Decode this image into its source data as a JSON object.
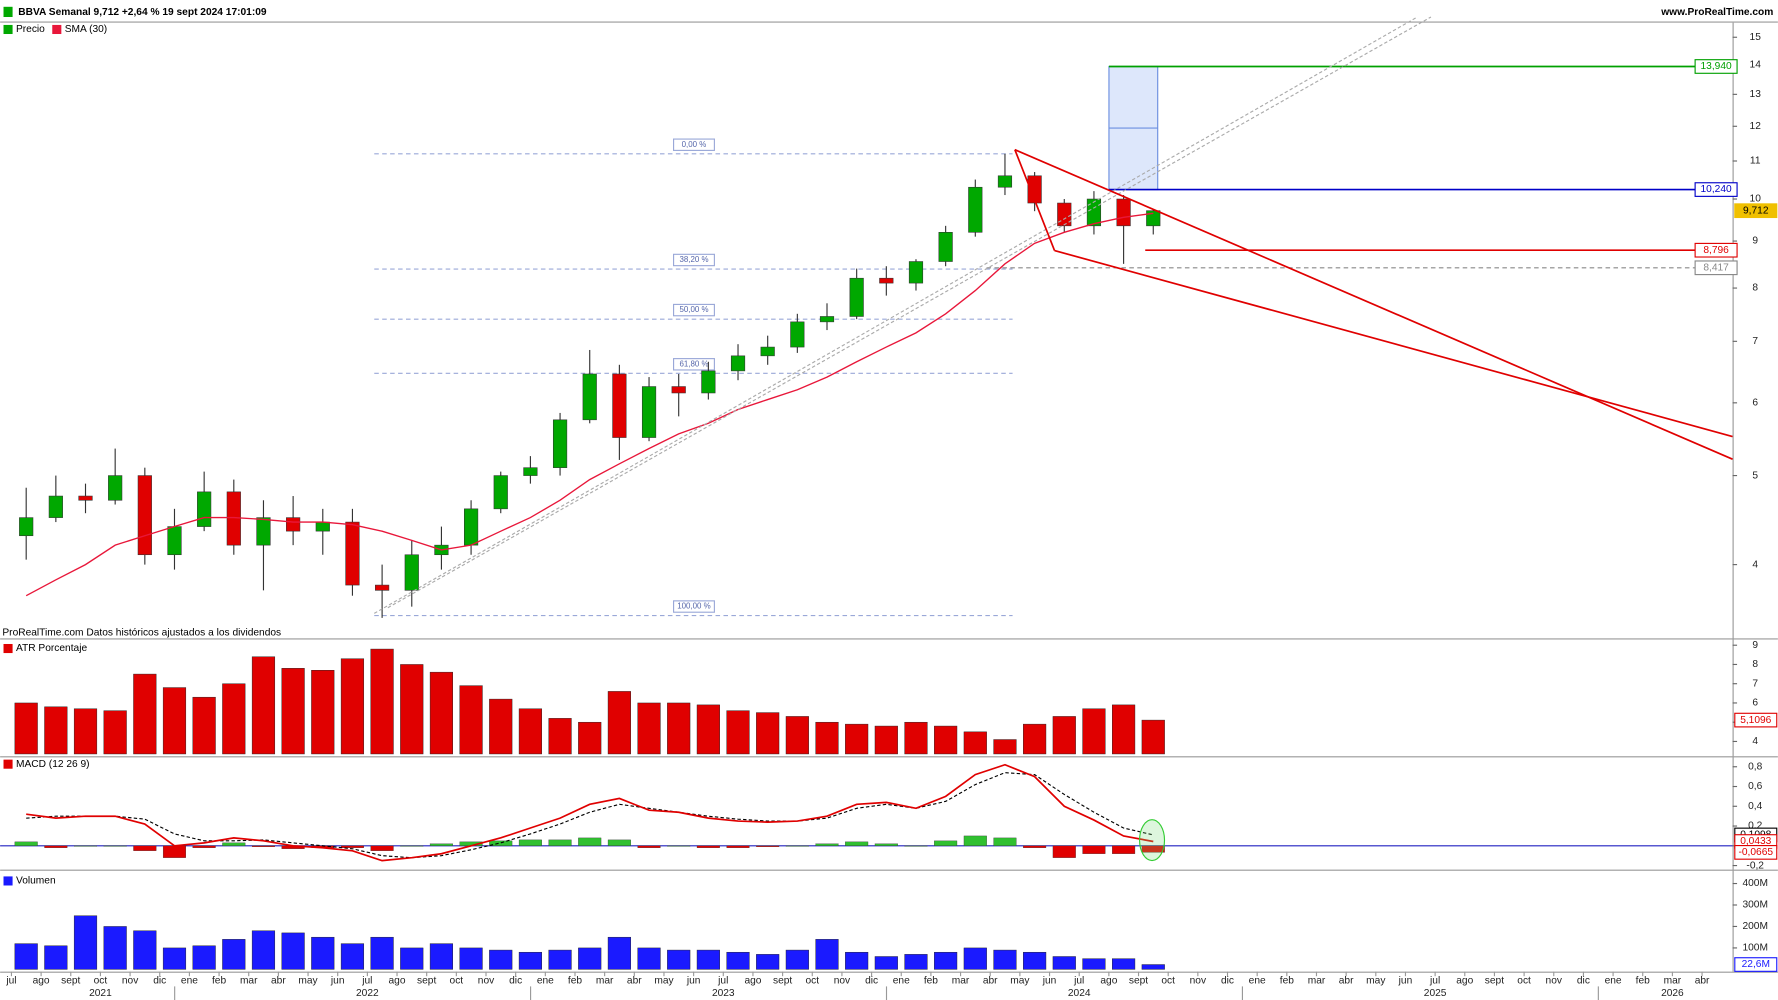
{
  "chart_data": [
    {
      "type": "candlestick",
      "title": "BBVA Semanal 9,712 +2,64 % 19 sept 2024 17:01:09",
      "source": "www.ProRealTime.com",
      "note": "ProRealTime.com Datos históricos ajustados a los dividendos",
      "categories": [
        "jul",
        "ago",
        "sept",
        "oct",
        "nov",
        "dic",
        "ene",
        "feb",
        "mar",
        "abr",
        "may",
        "jun",
        "jul",
        "ago",
        "sept",
        "oct",
        "nov",
        "dic",
        "ene",
        "feb",
        "mar",
        "abr",
        "may",
        "jun",
        "jul",
        "ago",
        "sept",
        "oct",
        "nov",
        "dic",
        "ene",
        "feb",
        "mar",
        "abr",
        "may",
        "jun",
        "jul",
        "ago",
        "sept",
        "oct",
        "nov",
        "dic",
        "ene",
        "feb",
        "mar",
        "abr",
        "may",
        "jun",
        "jul",
        "ago",
        "sept",
        "oct",
        "nov",
        "dic",
        "ene",
        "feb",
        "mar",
        "abr"
      ],
      "year_labels": [
        null,
        null,
        null,
        "2021",
        null,
        null,
        null,
        null,
        null,
        null,
        null,
        null,
        "2022",
        null,
        null,
        null,
        null,
        null,
        null,
        null,
        null,
        null,
        null,
        null,
        "2023",
        null,
        null,
        null,
        null,
        null,
        null,
        null,
        null,
        null,
        null,
        null,
        "2024",
        null,
        null,
        null,
        null,
        null,
        null,
        null,
        null,
        null,
        null,
        null,
        "2025",
        null,
        null,
        null,
        null,
        null,
        null,
        null,
        "2026",
        null
      ],
      "series": [
        {
          "name": "Precio",
          "up_color": "#00a800",
          "down_color": "#e00000",
          "open": [
            4.3,
            4.5,
            4.75,
            4.7,
            5.0,
            4.1,
            4.4,
            4.8,
            4.2,
            4.5,
            4.35,
            4.45,
            3.8,
            3.75,
            4.1,
            4.2,
            4.6,
            5.0,
            5.1,
            5.75,
            6.45,
            5.5,
            6.25,
            6.15,
            6.5,
            6.75,
            6.9,
            7.35,
            7.45,
            8.2,
            8.1,
            8.55,
            9.2,
            10.3,
            10.6,
            9.9,
            9.35,
            10.0,
            9.35,
            null,
            null,
            null,
            null,
            null,
            null,
            null,
            null,
            null,
            null,
            null,
            null,
            null,
            null,
            null,
            null,
            null,
            null,
            null
          ],
          "high": [
            4.85,
            5.0,
            4.9,
            5.35,
            5.1,
            4.6,
            5.05,
            4.95,
            4.7,
            4.75,
            4.6,
            4.6,
            4.0,
            4.25,
            4.4,
            4.7,
            5.05,
            5.25,
            5.85,
            6.85,
            6.6,
            6.4,
            6.45,
            6.65,
            6.95,
            7.1,
            7.5,
            7.7,
            8.4,
            8.45,
            8.6,
            9.35,
            10.5,
            11.2,
            10.7,
            10.0,
            10.2,
            10.1,
            9.75,
            null,
            null,
            null,
            null,
            null,
            null,
            null,
            null,
            null,
            null,
            null,
            null,
            null,
            null,
            null,
            null,
            null,
            null,
            null
          ],
          "low": [
            4.05,
            4.45,
            4.55,
            4.65,
            4.0,
            3.95,
            4.35,
            4.1,
            3.75,
            4.2,
            4.1,
            3.7,
            3.5,
            3.6,
            3.95,
            4.1,
            4.55,
            4.9,
            5.0,
            5.7,
            5.2,
            5.45,
            5.8,
            6.05,
            6.35,
            6.6,
            6.8,
            7.2,
            7.4,
            7.85,
            7.95,
            8.45,
            9.1,
            10.1,
            9.7,
            9.2,
            9.15,
            8.5,
            9.15,
            null,
            null,
            null,
            null,
            null,
            null,
            null,
            null,
            null,
            null,
            null,
            null,
            null,
            null,
            null,
            null,
            null,
            null,
            null
          ],
          "close": [
            4.5,
            4.75,
            4.7,
            5.0,
            4.1,
            4.4,
            4.8,
            4.2,
            4.5,
            4.35,
            4.45,
            3.8,
            3.75,
            4.1,
            4.2,
            4.6,
            5.0,
            5.1,
            5.75,
            6.45,
            5.5,
            6.25,
            6.15,
            6.5,
            6.75,
            6.9,
            7.35,
            7.45,
            8.2,
            8.1,
            8.55,
            9.2,
            10.3,
            10.6,
            9.9,
            9.35,
            10.0,
            9.35,
            9.712,
            null,
            null,
            null,
            null,
            null,
            null,
            null,
            null,
            null,
            null,
            null,
            null,
            null,
            null,
            null,
            null,
            null,
            null,
            null
          ]
        },
        {
          "name": "SMA (30)",
          "color": "#e8173a",
          "values": [
            3.7,
            3.85,
            4.0,
            4.2,
            4.3,
            4.4,
            4.5,
            4.5,
            4.48,
            4.45,
            4.45,
            4.42,
            4.35,
            4.25,
            4.15,
            4.2,
            4.35,
            4.5,
            4.7,
            4.95,
            5.15,
            5.35,
            5.55,
            5.7,
            5.9,
            6.05,
            6.2,
            6.4,
            6.65,
            6.9,
            7.15,
            7.5,
            7.95,
            8.5,
            8.95,
            9.2,
            9.4,
            9.55,
            9.65,
            null,
            null,
            null,
            null,
            null,
            null,
            null,
            null,
            null,
            null,
            null,
            null,
            null,
            null,
            null,
            null,
            null,
            null,
            null
          ]
        }
      ],
      "ylim": [
        3.47,
        15.47
      ],
      "log_scale": true,
      "yticks": [
        4,
        5,
        6,
        7,
        8,
        9,
        10,
        11,
        12,
        13,
        14,
        15
      ],
      "levels": [
        {
          "value": 13.94,
          "label": "13,940",
          "color": "#00a000"
        },
        {
          "value": 10.24,
          "label": "10,240",
          "color": "#0000c8"
        },
        {
          "value": 9.712,
          "label": "9,712",
          "color": "#f0c000"
        },
        {
          "value": 8.796,
          "label": "8,796",
          "color": "#e00000"
        },
        {
          "value": 8.417,
          "label": "8,417",
          "color": "#888888"
        }
      ],
      "fibonacci": [
        {
          "value": 11.2,
          "label": "0,00 %"
        },
        {
          "value": 8.39,
          "label": "38,20 %"
        },
        {
          "value": 7.4,
          "label": "50,00 %"
        },
        {
          "value": 6.46,
          "label": "61,80 %"
        },
        {
          "value": 3.52,
          "label": "100,00 %"
        }
      ]
    },
    {
      "type": "bar",
      "legend": "ATR Porcentaje",
      "color": "#e00000",
      "values": [
        6.0,
        5.8,
        5.7,
        5.6,
        7.5,
        6.8,
        6.3,
        7.0,
        8.4,
        7.8,
        7.7,
        8.3,
        8.8,
        8.0,
        7.6,
        6.9,
        6.2,
        5.7,
        5.2,
        5.0,
        6.6,
        6.0,
        6.0,
        5.9,
        5.6,
        5.5,
        5.3,
        5.0,
        4.9,
        4.8,
        5.0,
        4.8,
        4.5,
        4.1,
        4.9,
        5.3,
        5.7,
        5.9,
        5.1096,
        null,
        null,
        null,
        null,
        null,
        null,
        null,
        null,
        null,
        null,
        null,
        null,
        null,
        null,
        null,
        null,
        null,
        null,
        null
      ],
      "value_labels": [
        null,
        null,
        null,
        null,
        null,
        null,
        null,
        null,
        null,
        null,
        null,
        null,
        null,
        null,
        null,
        null,
        null,
        null,
        null,
        null,
        null,
        null,
        null,
        null,
        null,
        null,
        null,
        null,
        null,
        null,
        null,
        null,
        null,
        null,
        null,
        null,
        null,
        null,
        "5,1096",
        null,
        null,
        null,
        null,
        null,
        null,
        null,
        null,
        null,
        null,
        null,
        null,
        null,
        null,
        null,
        null,
        null,
        null,
        null
      ],
      "ylim": [
        3.35,
        9.24
      ],
      "yticks": [
        4,
        5,
        6,
        7,
        8,
        9
      ]
    },
    {
      "type": "macd",
      "legend": "MACD (12 26 9)",
      "line": {
        "color": "#e00000",
        "values": [
          0.32,
          0.28,
          0.3,
          0.3,
          0.22,
          0.0,
          0.03,
          0.08,
          0.05,
          0.0,
          -0.02,
          -0.05,
          -0.15,
          -0.12,
          -0.08,
          0.0,
          0.08,
          0.18,
          0.28,
          0.42,
          0.48,
          0.36,
          0.34,
          0.28,
          0.25,
          0.24,
          0.25,
          0.3,
          0.42,
          0.44,
          0.38,
          0.5,
          0.72,
          0.82,
          0.7,
          0.4,
          0.26,
          0.1,
          0.0433,
          null,
          null,
          null,
          null,
          null,
          null,
          null,
          null,
          null,
          null,
          null,
          null,
          null,
          null,
          null,
          null,
          null,
          null,
          null
        ],
        "value_labels": [
          null,
          null,
          null,
          null,
          null,
          null,
          null,
          null,
          null,
          null,
          null,
          null,
          null,
          null,
          null,
          null,
          null,
          null,
          null,
          null,
          null,
          null,
          null,
          null,
          null,
          null,
          null,
          null,
          null,
          null,
          null,
          null,
          null,
          null,
          null,
          null,
          null,
          null,
          "0,0433",
          null,
          null,
          null,
          null,
          null,
          null,
          null,
          null,
          null,
          null,
          null,
          null,
          null,
          null,
          null,
          null,
          null,
          null,
          null
        ]
      },
      "signal": {
        "color": "#000000",
        "dashed": true,
        "values": [
          0.28,
          0.3,
          0.3,
          0.3,
          0.27,
          0.12,
          0.05,
          0.05,
          0.06,
          0.03,
          0.0,
          -0.03,
          -0.1,
          -0.12,
          -0.1,
          -0.04,
          0.03,
          0.12,
          0.22,
          0.34,
          0.42,
          0.38,
          0.34,
          0.3,
          0.27,
          0.25,
          0.25,
          0.28,
          0.38,
          0.42,
          0.38,
          0.45,
          0.62,
          0.74,
          0.72,
          0.52,
          0.34,
          0.18,
          0.1098,
          null,
          null,
          null,
          null,
          null,
          null,
          null,
          null,
          null,
          null,
          null,
          null,
          null,
          null,
          null,
          null,
          null,
          null,
          null
        ],
        "value_labels": [
          null,
          null,
          null,
          null,
          null,
          null,
          null,
          null,
          null,
          null,
          null,
          null,
          null,
          null,
          null,
          null,
          null,
          null,
          null,
          null,
          null,
          null,
          null,
          null,
          null,
          null,
          null,
          null,
          null,
          null,
          null,
          null,
          null,
          null,
          null,
          null,
          null,
          null,
          "0,1098",
          null,
          null,
          null,
          null,
          null,
          null,
          null,
          null,
          null,
          null,
          null,
          null,
          null,
          null,
          null,
          null,
          null,
          null,
          null
        ]
      },
      "histogram": {
        "up_color": "#30c030",
        "down_color": "#e00000",
        "values": [
          0.04,
          -0.02,
          0.0,
          0.0,
          -0.05,
          -0.12,
          -0.02,
          0.03,
          -0.01,
          -0.03,
          -0.02,
          -0.02,
          -0.05,
          0.0,
          0.02,
          0.04,
          0.05,
          0.06,
          0.06,
          0.08,
          0.06,
          -0.02,
          0.0,
          -0.02,
          -0.02,
          -0.01,
          0.0,
          0.02,
          0.04,
          0.02,
          0.0,
          0.05,
          0.1,
          0.08,
          -0.02,
          -0.12,
          -0.08,
          -0.08,
          -0.0665,
          null,
          null,
          null,
          null,
          null,
          null,
          null,
          null,
          null,
          null,
          null,
          null,
          null,
          null,
          null,
          null,
          null,
          null,
          null
        ],
        "value_labels": [
          null,
          null,
          null,
          null,
          null,
          null,
          null,
          null,
          null,
          null,
          null,
          null,
          null,
          null,
          null,
          null,
          null,
          null,
          null,
          null,
          null,
          null,
          null,
          null,
          null,
          null,
          null,
          null,
          null,
          null,
          null,
          null,
          null,
          null,
          null,
          null,
          null,
          null,
          "-0,0665",
          null,
          null,
          null,
          null,
          null,
          null,
          null,
          null,
          null,
          null,
          null,
          null,
          null,
          null,
          null,
          null,
          null,
          null,
          null
        ]
      },
      "ylim": [
        -0.218,
        0.872
      ],
      "yticks": [
        {
          "value": 0.8,
          "label": "0,8"
        },
        {
          "value": 0.6,
          "label": "0,6"
        },
        {
          "value": 0.4,
          "label": "0,4"
        },
        {
          "value": 0.2,
          "label": "0,2"
        },
        0,
        {
          "value": -0.2,
          "label": "-0,2"
        }
      ]
    },
    {
      "type": "bar",
      "legend": "Volumen",
      "color": "#1a1aff",
      "values": [
        120000000,
        110000000,
        250000000,
        200000000,
        180000000,
        100000000,
        110000000,
        140000000,
        180000000,
        170000000,
        150000000,
        120000000,
        150000000,
        100000000,
        120000000,
        100000000,
        90000000,
        80000000,
        90000000,
        100000000,
        150000000,
        100000000,
        90000000,
        90000000,
        80000000,
        70000000,
        90000000,
        140000000,
        80000000,
        60000000,
        70000000,
        80000000,
        100000000,
        90000000,
        80000000,
        60000000,
        50000000,
        50000000,
        22600000,
        null,
        null,
        null,
        null,
        null,
        null,
        null,
        null,
        null,
        null,
        null,
        null,
        null,
        null,
        null,
        null,
        null,
        null,
        null
      ],
      "value_labels": [
        null,
        null,
        null,
        null,
        null,
        null,
        null,
        null,
        null,
        null,
        null,
        null,
        null,
        null,
        null,
        null,
        null,
        null,
        null,
        null,
        null,
        null,
        null,
        null,
        null,
        null,
        null,
        null,
        null,
        null,
        null,
        null,
        null,
        null,
        null,
        null,
        null,
        null,
        "22,6M",
        null,
        null,
        null,
        null,
        null,
        null,
        null,
        null,
        null,
        null,
        null,
        null,
        null,
        null,
        null,
        null,
        null,
        null,
        null
      ],
      "ylim": [
        0,
        449000000
      ],
      "yticks": [
        {
          "value": 100000000,
          "label": "100M"
        },
        {
          "value": 200000000,
          "label": "200M"
        },
        {
          "value": 300000000,
          "label": "300M"
        },
        {
          "value": 400000000,
          "label": "400M"
        }
      ]
    }
  ]
}
